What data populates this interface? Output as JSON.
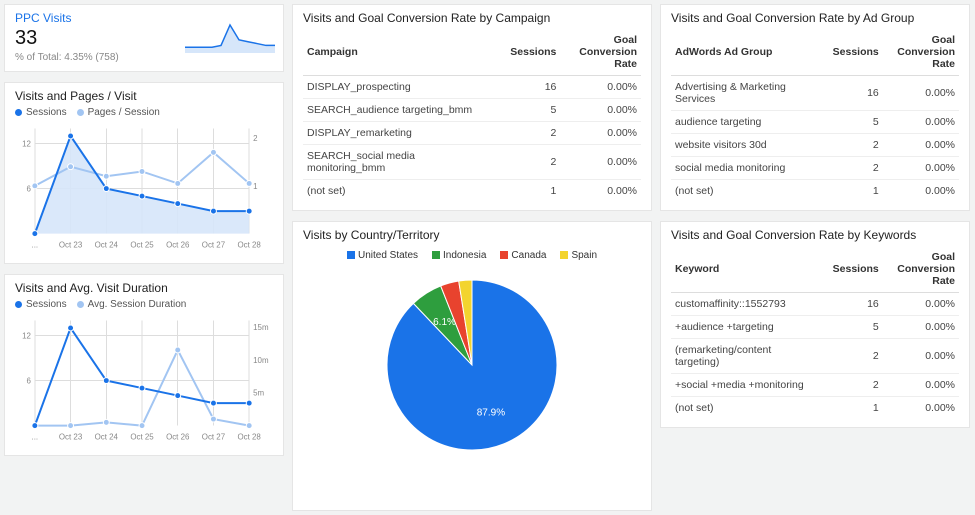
{
  "colors": {
    "blue": "#1a73e8",
    "lightblue": "#a2c5f2",
    "lightblue_fill": "#d6e6fa",
    "grid": "#dddddd",
    "text_muted": "#888888"
  },
  "ppc": {
    "title": "PPC Visits",
    "value": "33",
    "subtitle": "% of Total: 4.35% (758)",
    "spark": {
      "points": [
        2,
        2,
        2,
        2,
        3,
        14,
        6,
        5,
        4,
        3,
        3
      ],
      "stroke": "#1a73e8",
      "fill": "#d6e6fa"
    }
  },
  "visits_pages": {
    "title": "Visits and Pages / Visit",
    "series_a": {
      "label": "Sessions",
      "color": "#1a73e8",
      "values": [
        0,
        13,
        6,
        5,
        4,
        3,
        3
      ]
    },
    "series_b": {
      "label": "Pages / Session",
      "color": "#a2c5f2",
      "values": [
        1,
        1.4,
        1.2,
        1.3,
        1.05,
        1.7,
        1.05
      ]
    },
    "x_labels": [
      "...",
      "Oct 23",
      "Oct 24",
      "Oct 25",
      "Oct 26",
      "Oct 27",
      "Oct 28"
    ],
    "left_ticks": [
      6,
      12
    ],
    "right_ticks": [
      1,
      2
    ],
    "left_max": 14,
    "right_max": 2.2,
    "area_fill": "#d6e6fa"
  },
  "visits_duration": {
    "title": "Visits and Avg. Visit Duration",
    "series_a": {
      "label": "Sessions",
      "color": "#1a73e8",
      "values": [
        0,
        13,
        6,
        5,
        4,
        3,
        3
      ]
    },
    "series_b": {
      "label": "Avg. Session Duration",
      "color": "#a2c5f2",
      "values": [
        0,
        0,
        0.5,
        0,
        11.5,
        1,
        0
      ]
    },
    "x_labels": [
      "...",
      "Oct 23",
      "Oct 24",
      "Oct 25",
      "Oct 26",
      "Oct 27",
      "Oct 28"
    ],
    "left_ticks": [
      6,
      12
    ],
    "right_ticks": [
      {
        "v": 5,
        "label": "5m"
      },
      {
        "v": 10,
        "label": "10m"
      },
      {
        "v": 15,
        "label": "15m"
      }
    ],
    "left_max": 14,
    "right_max": 16
  },
  "campaign": {
    "title": "Visits and Goal Conversion Rate by Campaign",
    "columns": [
      "Campaign",
      "Sessions",
      "Goal Conversion Rate"
    ],
    "rows": [
      [
        "DISPLAY_prospecting",
        "16",
        "0.00%"
      ],
      [
        "SEARCH_audience targeting_bmm",
        "5",
        "0.00%"
      ],
      [
        "DISPLAY_remarketing",
        "2",
        "0.00%"
      ],
      [
        "SEARCH_social media monitoring_bmm",
        "2",
        "0.00%"
      ],
      [
        "(not set)",
        "1",
        "0.00%"
      ]
    ]
  },
  "country": {
    "title": "Visits by Country/Territory",
    "slices": [
      {
        "label": "United States",
        "value": 87.9,
        "color": "#1a73e8",
        "show_pct": "87.9%"
      },
      {
        "label": "Indonesia",
        "value": 6.1,
        "color": "#2e9e3e",
        "show_pct": "6.1%"
      },
      {
        "label": "Canada",
        "value": 3.5,
        "color": "#e8432e"
      },
      {
        "label": "Spain",
        "value": 2.5,
        "color": "#f3d42e"
      }
    ]
  },
  "adgroup": {
    "title": "Visits and Goal Conversion Rate by Ad Group",
    "columns": [
      "AdWords Ad Group",
      "Sessions",
      "Goal Conversion Rate"
    ],
    "rows": [
      [
        "Advertising & Marketing Services",
        "16",
        "0.00%"
      ],
      [
        "audience targeting",
        "5",
        "0.00%"
      ],
      [
        "website visitors 30d",
        "2",
        "0.00%"
      ],
      [
        "social media monitoring",
        "2",
        "0.00%"
      ],
      [
        "(not set)",
        "1",
        "0.00%"
      ]
    ]
  },
  "keywords": {
    "title": "Visits and Goal Conversion Rate by Keywords",
    "columns": [
      "Keyword",
      "Sessions",
      "Goal Conversion Rate"
    ],
    "rows": [
      [
        "customaffinity::1552793",
        "16",
        "0.00%"
      ],
      [
        "+audience +targeting",
        "5",
        "0.00%"
      ],
      [
        "(remarketing/content targeting)",
        "2",
        "0.00%"
      ],
      [
        "+social +media +monitoring",
        "2",
        "0.00%"
      ],
      [
        "(not set)",
        "1",
        "0.00%"
      ]
    ]
  }
}
